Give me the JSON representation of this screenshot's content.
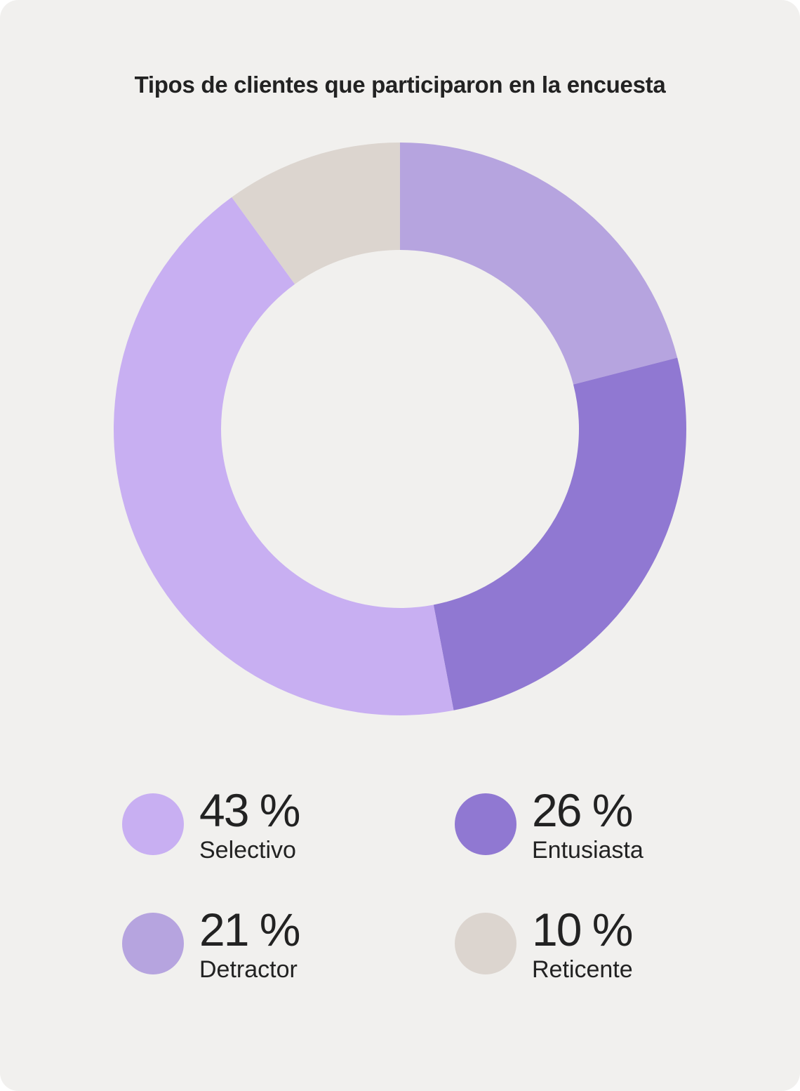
{
  "chart_data": {
    "type": "pie",
    "variant": "donut",
    "title": "Tipos de clientes que participaron en la encuesta",
    "categories": [
      "Selectivo",
      "Entusiasta",
      "Detractor",
      "Reticente"
    ],
    "values": [
      43,
      26,
      21,
      10
    ],
    "value_labels": [
      "43 %",
      "26 %",
      "21 %",
      "10 %"
    ],
    "colors": [
      "#c8aff2",
      "#9078d2",
      "#b6a4df",
      "#dcd5cf"
    ],
    "legend_placement": "bottom",
    "legend_columns": 2
  },
  "legend": [
    {
      "pct": "43 %",
      "label": "Selectivo",
      "color": "#c8aff2"
    },
    {
      "pct": "26 %",
      "label": "Entusiasta",
      "color": "#9078d2"
    },
    {
      "pct": "21 %",
      "label": "Detractor",
      "color": "#b6a4df"
    },
    {
      "pct": "10 %",
      "label": "Reticente",
      "color": "#dcd5cf"
    }
  ],
  "background_color": "#f1f0ee"
}
